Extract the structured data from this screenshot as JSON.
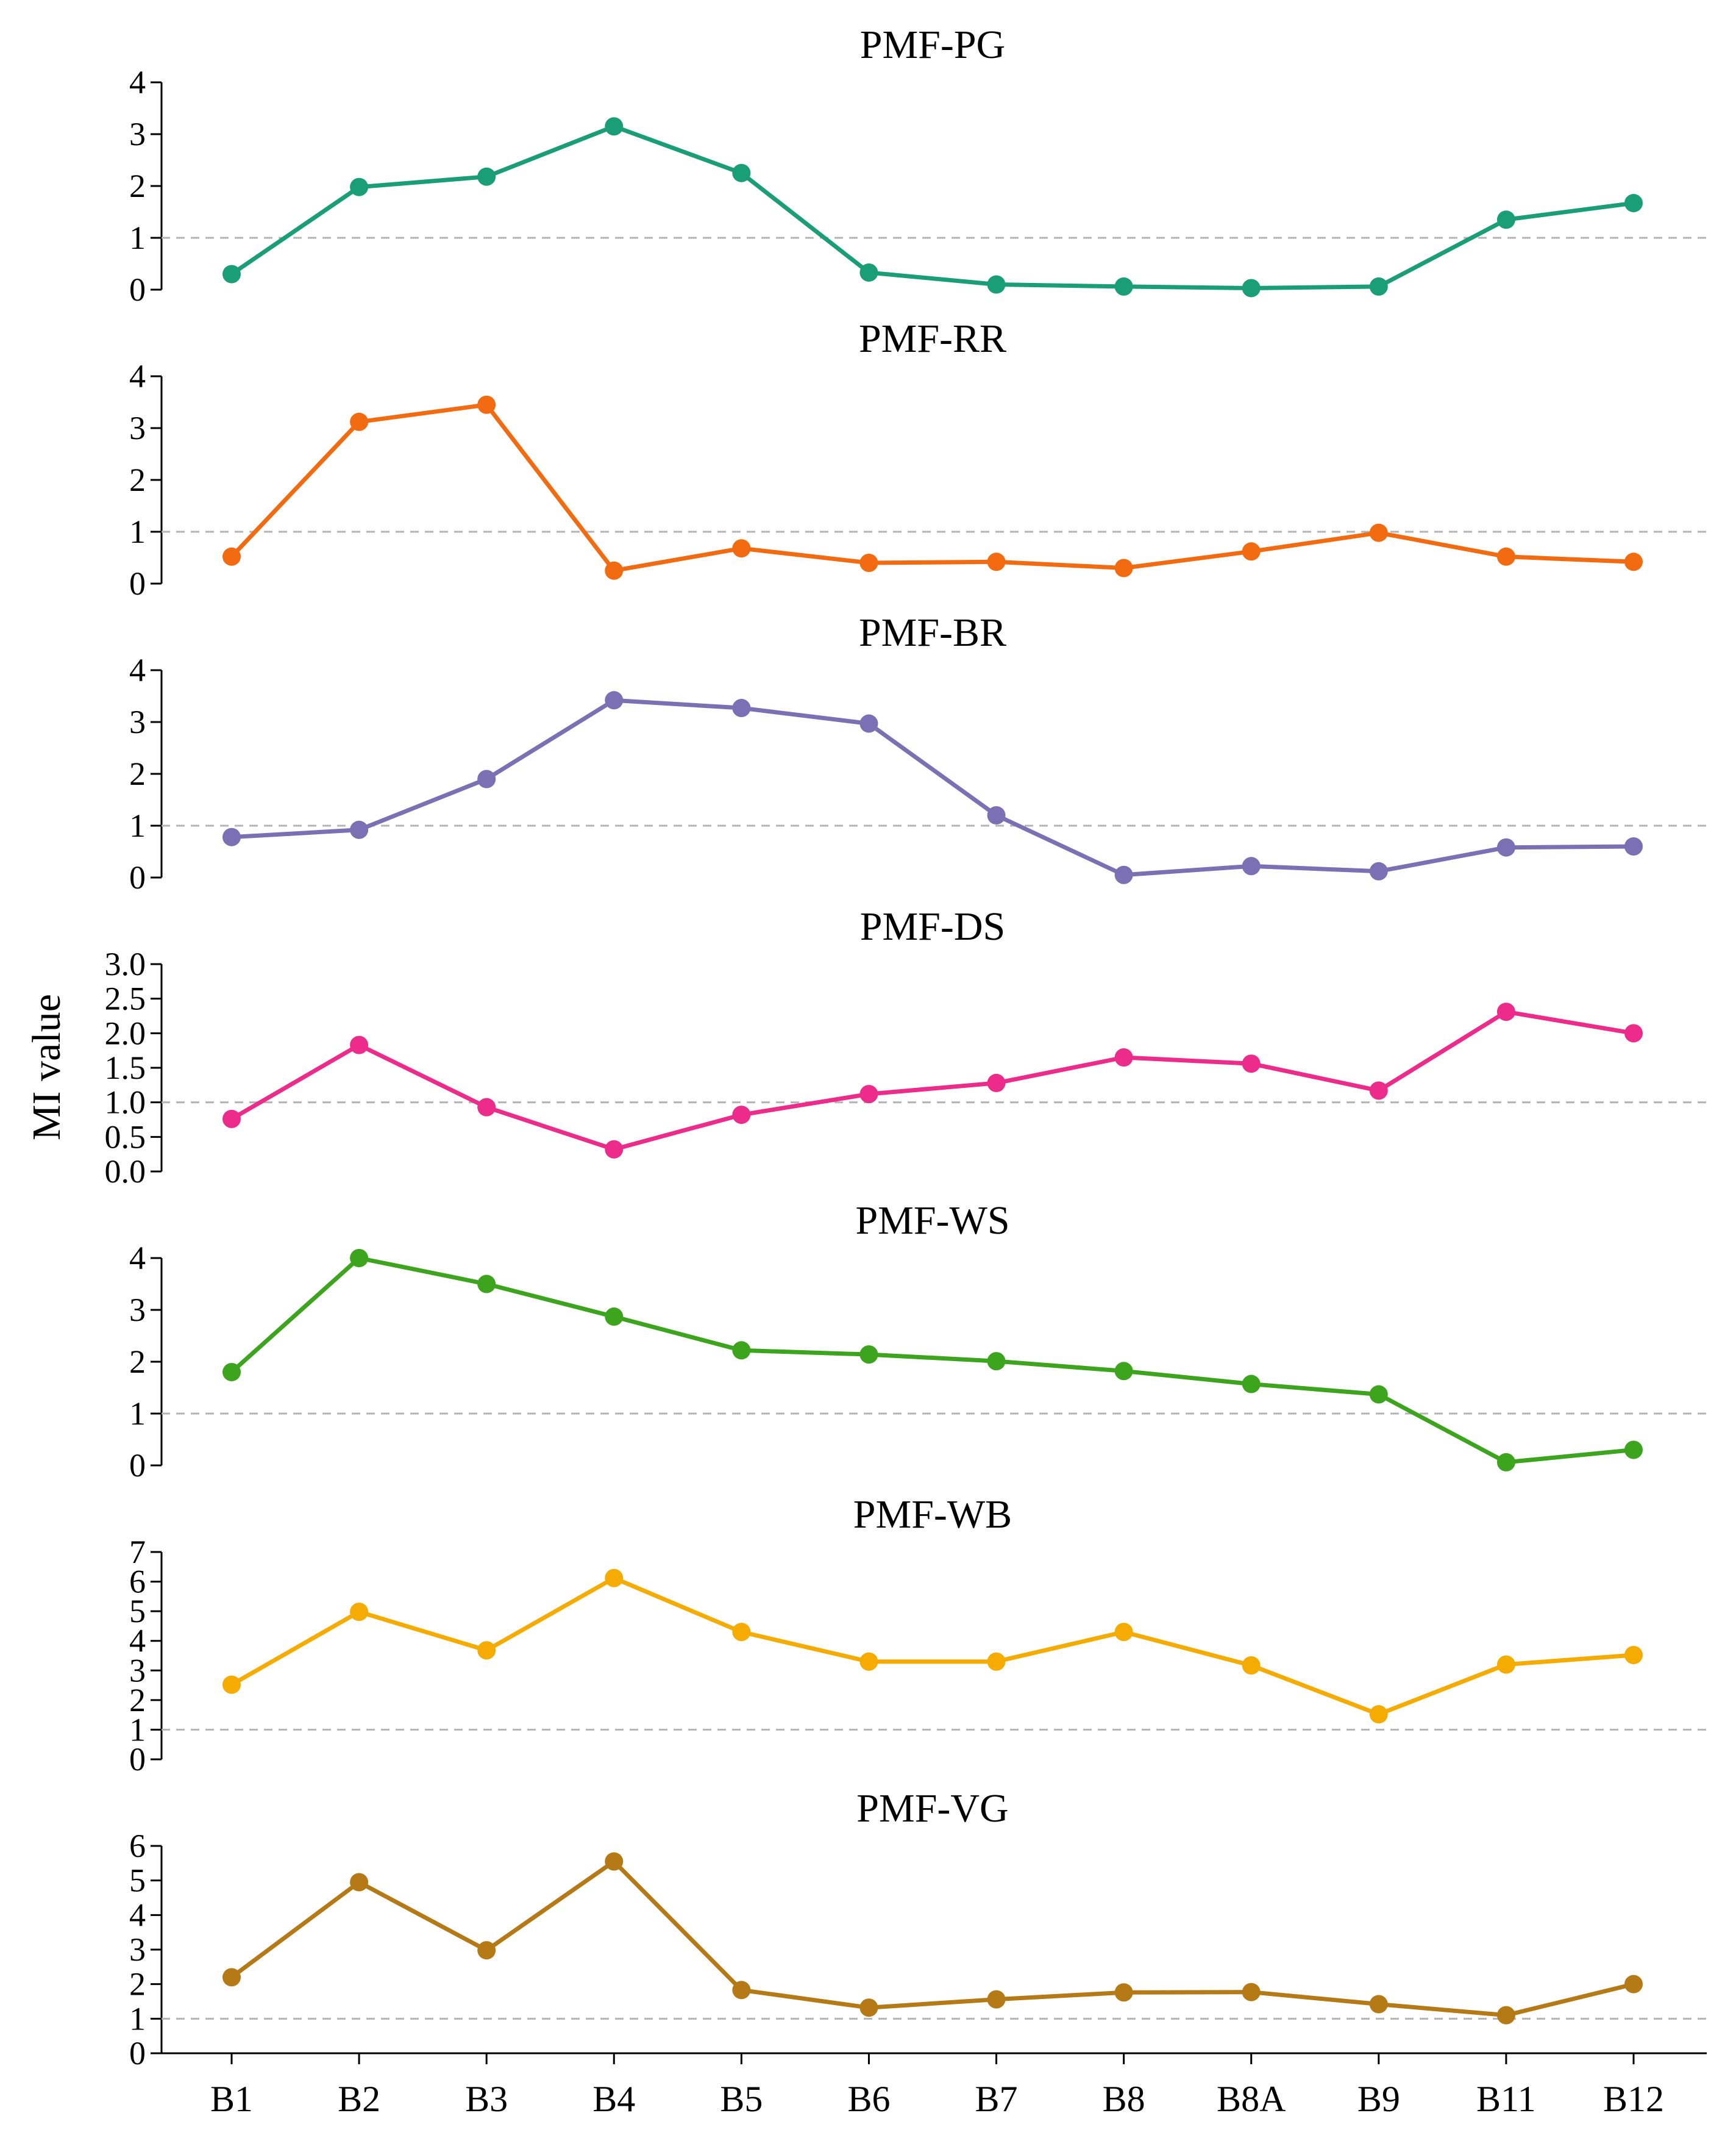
{
  "chart_data": {
    "type": "line",
    "ylabel": "MI value",
    "xlabel": "",
    "categories": [
      "B1",
      "B2",
      "B3",
      "B4",
      "B5",
      "B6",
      "B7",
      "B8",
      "B8A",
      "B9",
      "B11",
      "B12"
    ],
    "reference_line": {
      "y": 1,
      "style": "dashed",
      "color": "#b4b4b4"
    },
    "panels": [
      {
        "title": "PMF-PG",
        "color": "#1a9e77",
        "ylim": [
          0,
          4
        ],
        "yticks": [
          "0",
          "1",
          "2",
          "3",
          "4"
        ],
        "yticks_values": [
          0,
          1,
          2,
          3,
          4
        ],
        "values": [
          0.3,
          1.98,
          2.18,
          3.15,
          2.25,
          0.33,
          0.1,
          0.06,
          0.03,
          0.06,
          1.35,
          1.67
        ]
      },
      {
        "title": "PMF-RR",
        "color": "#f26b11",
        "ylim": [
          0,
          4
        ],
        "yticks": [
          "0",
          "1",
          "2",
          "3",
          "4"
        ],
        "yticks_values": [
          0,
          1,
          2,
          3,
          4
        ],
        "values": [
          0.52,
          3.12,
          3.45,
          0.25,
          0.68,
          0.4,
          0.42,
          0.3,
          0.62,
          0.98,
          0.52,
          0.42
        ]
      },
      {
        "title": "PMF-BR",
        "color": "#7a70b3",
        "ylim": [
          0,
          4
        ],
        "yticks": [
          "0",
          "1",
          "2",
          "3",
          "4"
        ],
        "yticks_values": [
          0,
          1,
          2,
          3,
          4
        ],
        "values": [
          0.78,
          0.92,
          1.9,
          3.42,
          3.27,
          2.97,
          1.2,
          0.05,
          0.22,
          0.12,
          0.58,
          0.6
        ]
      },
      {
        "title": "PMF-DS",
        "color": "#ed2b8a",
        "ylim": [
          0,
          3
        ],
        "yticks": [
          "0.0",
          "0.5",
          "1.0",
          "1.5",
          "2.0",
          "2.5",
          "3.0"
        ],
        "yticks_values": [
          0,
          0.5,
          1,
          1.5,
          2,
          2.5,
          3
        ],
        "values": [
          0.76,
          1.83,
          0.93,
          0.32,
          0.82,
          1.12,
          1.28,
          1.65,
          1.56,
          1.17,
          2.31,
          2.0
        ]
      },
      {
        "title": "PMF-WS",
        "color": "#3da41d",
        "ylim": [
          0,
          4
        ],
        "yticks": [
          "0",
          "1",
          "2",
          "3",
          "4"
        ],
        "yticks_values": [
          0,
          1,
          2,
          3,
          4
        ],
        "values": [
          1.8,
          4.0,
          3.5,
          2.87,
          2.22,
          2.14,
          2.01,
          1.82,
          1.57,
          1.37,
          0.06,
          0.3
        ]
      },
      {
        "title": "PMF-WB",
        "color": "#f5ab00",
        "ylim": [
          0,
          7
        ],
        "yticks": [
          "0",
          "1",
          "2",
          "3",
          "4",
          "5",
          "6",
          "7"
        ],
        "yticks_values": [
          0,
          1,
          2,
          3,
          4,
          5,
          6,
          7
        ],
        "values": [
          2.52,
          4.98,
          3.68,
          6.12,
          4.3,
          3.3,
          3.3,
          4.3,
          3.17,
          1.52,
          3.2,
          3.52
        ]
      },
      {
        "title": "PMF-VG",
        "color": "#b57916",
        "ylim": [
          0,
          6
        ],
        "yticks": [
          "0",
          "1",
          "2",
          "3",
          "4",
          "5",
          "6"
        ],
        "yticks_values": [
          0,
          1,
          2,
          3,
          4,
          5,
          6
        ],
        "values": [
          2.2,
          4.95,
          2.98,
          5.55,
          1.83,
          1.32,
          1.56,
          1.76,
          1.77,
          1.42,
          1.1,
          2.0
        ]
      }
    ]
  }
}
